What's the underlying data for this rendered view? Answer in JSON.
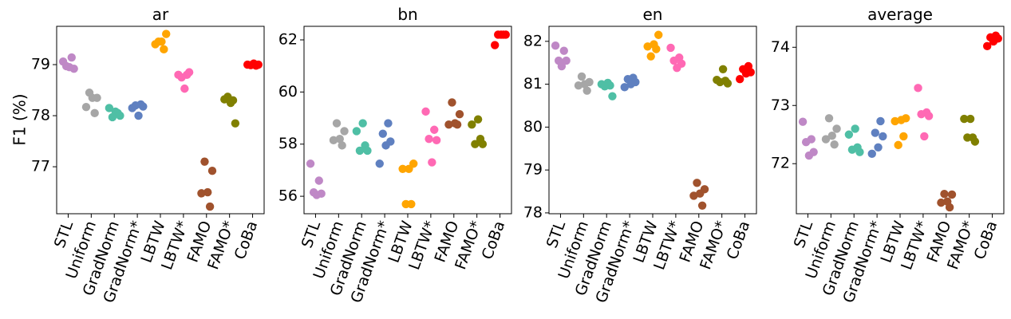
{
  "chart_data": {
    "type": "scatter",
    "ylabel": "F1 (%)",
    "categories": [
      "STL",
      "Uniform",
      "GradNorm",
      "GradNorm*",
      "LBTW",
      "LBTW*",
      "FAMO",
      "FAMO*",
      "CoBa"
    ],
    "colors": [
      "#bf88c6",
      "#a6a6a6",
      "#4fbfa5",
      "#5f80c0",
      "#ffa500",
      "#ff69b4",
      "#a0522d",
      "#808000",
      "#ff0000"
    ],
    "grid": false,
    "panels": [
      {
        "title": "ar",
        "ylim": [
          76.08,
          79.75
        ],
        "yticks": [
          77,
          78,
          79
        ],
        "values": [
          [
            79.06,
            79.14,
            78.97,
            78.92,
            78.95
          ],
          [
            78.45,
            78.35,
            78.35,
            78.17,
            78.05
          ],
          [
            78.08,
            78.15,
            78.05,
            77.97,
            78.0
          ],
          [
            78.22,
            78.2,
            78.18,
            78.0,
            78.15
          ],
          [
            79.6,
            79.45,
            79.4,
            79.3,
            79.45
          ],
          [
            78.8,
            78.8,
            78.75,
            78.85,
            78.53
          ],
          [
            77.1,
            76.92,
            76.5,
            76.48,
            76.22
          ],
          [
            78.25,
            78.32,
            78.3,
            78.37,
            77.85
          ],
          [
            78.98,
            78.99,
            79.0,
            79.02,
            79.0
          ]
        ]
      },
      {
        "title": "bn",
        "ylim": [
          55.33,
          62.52
        ],
        "yticks": [
          56,
          58,
          60,
          62
        ],
        "values": [
          [
            57.25,
            56.6,
            56.15,
            56.1,
            56.05
          ],
          [
            58.8,
            58.5,
            58.2,
            58.15,
            57.95
          ],
          [
            58.8,
            58.5,
            57.95,
            57.75,
            57.75
          ],
          [
            58.8,
            58.4,
            58.1,
            57.95,
            57.25
          ],
          [
            57.25,
            57.05,
            57.05,
            55.7,
            55.7
          ],
          [
            59.25,
            58.55,
            58.2,
            58.15,
            57.3
          ],
          [
            59.6,
            59.15,
            58.8,
            58.75,
            58.75
          ],
          [
            58.95,
            58.75,
            58.2,
            58.0,
            58.0
          ],
          [
            62.2,
            62.2,
            62.2,
            62.2,
            61.8
          ]
        ]
      },
      {
        "title": "en",
        "ylim": [
          77.98,
          82.35
        ],
        "yticks": [
          78,
          79,
          80,
          81,
          82
        ],
        "values": [
          [
            81.9,
            81.78,
            81.55,
            81.55,
            81.42
          ],
          [
            81.18,
            81.05,
            81.0,
            80.97,
            80.85
          ],
          [
            81.03,
            81.0,
            80.97,
            80.95,
            80.72
          ],
          [
            81.15,
            81.12,
            81.05,
            81.0,
            80.93
          ],
          [
            82.15,
            81.93,
            81.88,
            81.82,
            81.65
          ],
          [
            81.85,
            81.62,
            81.55,
            81.48,
            81.38
          ],
          [
            78.7,
            78.55,
            78.45,
            78.4,
            78.17
          ],
          [
            81.35,
            81.1,
            81.08,
            81.05,
            81.02
          ],
          [
            81.42,
            81.35,
            81.28,
            81.25,
            81.12
          ]
        ]
      },
      {
        "title": "average",
        "ylim": [
          71.14,
          74.36
        ],
        "yticks": [
          72,
          73,
          74
        ],
        "values": [
          [
            72.72,
            72.42,
            72.37,
            72.2,
            72.14
          ],
          [
            72.78,
            72.6,
            72.48,
            72.42,
            72.33
          ],
          [
            72.6,
            72.5,
            72.28,
            72.24,
            72.2
          ],
          [
            72.73,
            72.53,
            72.47,
            72.28,
            72.17
          ],
          [
            72.78,
            72.75,
            72.73,
            72.47,
            72.32
          ],
          [
            73.3,
            72.88,
            72.85,
            72.82,
            72.47
          ],
          [
            71.48,
            71.47,
            71.35,
            71.33,
            71.25
          ],
          [
            72.77,
            72.77,
            72.45,
            72.45,
            72.38
          ],
          [
            74.2,
            74.17,
            74.15,
            74.1,
            74.02
          ]
        ]
      }
    ]
  }
}
